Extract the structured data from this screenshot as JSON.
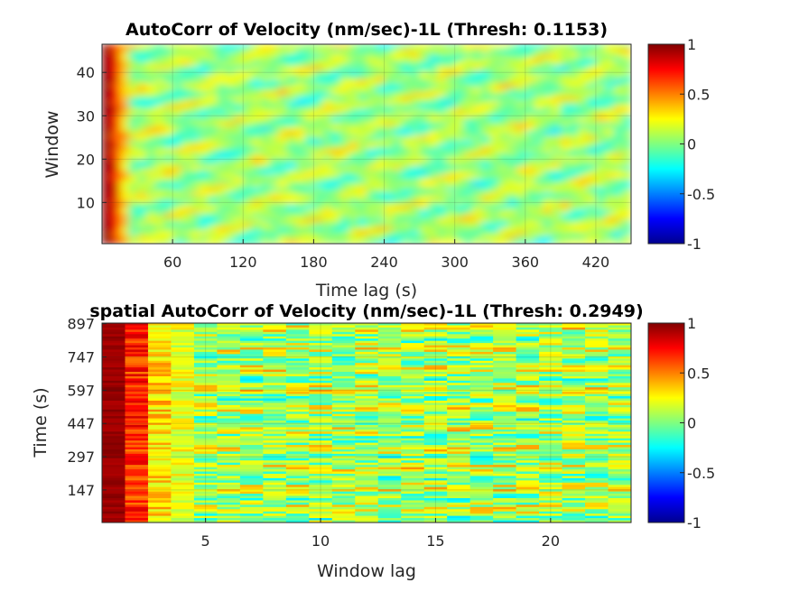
{
  "chart_data": [
    {
      "type": "heatmap",
      "title": "AutoCorr of Velocity (nm/sec)-1L (Thresh: 0.1153)",
      "xlabel": "Time lag (s)",
      "ylabel": "Window",
      "xlim": [
        0,
        450
      ],
      "ylim": [
        0.5,
        46.5
      ],
      "xticks": [
        60,
        120,
        180,
        240,
        300,
        360,
        420
      ],
      "yticks": [
        10,
        20,
        30,
        40
      ],
      "grid": true,
      "colorbar": {
        "range": [
          -1,
          1
        ],
        "ticks": [
          1,
          0.5,
          0,
          -0.5,
          -1
        ],
        "colormap": "jet"
      }
    },
    {
      "type": "heatmap",
      "title": "spatial AutoCorr of Velocity (nm/sec)-1L (Thresh: 0.2949)",
      "xlabel": "Window lag",
      "ylabel": "Time (s)",
      "xlim": [
        0.5,
        23.5
      ],
      "ylim": [
        0,
        900
      ],
      "xticks": [
        5,
        10,
        15,
        20
      ],
      "yticks": [
        147,
        297,
        447,
        597,
        747,
        897
      ],
      "grid": true,
      "colorbar": {
        "range": [
          -1,
          1
        ],
        "ticks": [
          1,
          0.5,
          0,
          -0.5,
          -1
        ],
        "colormap": "jet"
      }
    }
  ]
}
